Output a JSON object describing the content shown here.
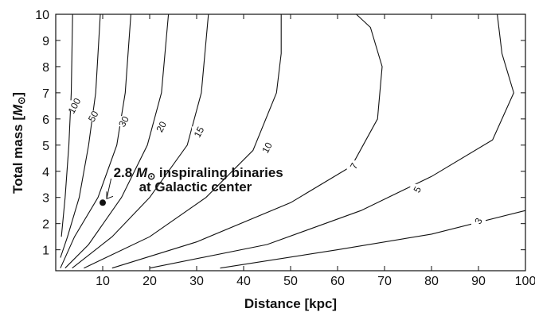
{
  "chart_data": {
    "type": "line",
    "title": "",
    "xlabel": "Distance [kpc]",
    "ylabel_parts": [
      "Total mass [",
      "M",
      "⊙",
      "]"
    ],
    "xlim": [
      0,
      100
    ],
    "ylim": [
      0.2,
      10
    ],
    "xticks": [
      10,
      20,
      30,
      40,
      50,
      60,
      70,
      80,
      90,
      100
    ],
    "yticks": [
      1,
      2,
      3,
      4,
      5,
      6,
      7,
      8,
      9,
      10
    ],
    "grid": false,
    "series": [
      {
        "name": "100",
        "points": [
          [
            1.2,
            1.5
          ],
          [
            2.0,
            3.0
          ],
          [
            2.8,
            5.0
          ],
          [
            3.3,
            7.0
          ],
          [
            3.6,
            10.0
          ]
        ],
        "label_at": [
          4.0,
          6.5
        ]
      },
      {
        "name": "50",
        "points": [
          [
            1.0,
            0.7
          ],
          [
            2.5,
            1.5
          ],
          [
            5.0,
            3.0
          ],
          [
            7.0,
            5.0
          ],
          [
            8.5,
            7.0
          ],
          [
            9.5,
            10.0
          ]
        ],
        "label_at": [
          8.0,
          6.1
        ]
      },
      {
        "name": "30",
        "points": [
          [
            1.0,
            0.3
          ],
          [
            4.0,
            1.5
          ],
          [
            9.0,
            3.0
          ],
          [
            13.0,
            5.0
          ],
          [
            14.8,
            7.0
          ],
          [
            16.0,
            10.0
          ]
        ],
        "label_at": [
          14.5,
          5.9
        ]
      },
      {
        "name": "20",
        "points": [
          [
            2.0,
            0.3
          ],
          [
            7.0,
            1.2
          ],
          [
            14.0,
            3.0
          ],
          [
            19.5,
            5.0
          ],
          [
            22.5,
            7.0
          ],
          [
            24.0,
            10.0
          ]
        ],
        "label_at": [
          22.5,
          5.7
        ]
      },
      {
        "name": "15",
        "points": [
          [
            3.5,
            0.3
          ],
          [
            12.0,
            1.5
          ],
          [
            20.0,
            3.0
          ],
          [
            28.0,
            5.0
          ],
          [
            31.0,
            7.0
          ],
          [
            32.5,
            10.0
          ]
        ],
        "label_at": [
          30.5,
          5.5
        ]
      },
      {
        "name": "10",
        "points": [
          [
            6.0,
            0.3
          ],
          [
            20.0,
            1.5
          ],
          [
            32.0,
            3.0
          ],
          [
            42.0,
            4.8
          ],
          [
            47.0,
            7.0
          ],
          [
            48.0,
            8.5
          ],
          [
            48.0,
            10.0
          ]
        ],
        "label_at": [
          45.0,
          4.9
        ]
      },
      {
        "name": "7",
        "points": [
          [
            12.0,
            0.3
          ],
          [
            30.0,
            1.3
          ],
          [
            50.0,
            2.8
          ],
          [
            63.0,
            4.2
          ],
          [
            68.5,
            6.0
          ],
          [
            69.5,
            8.0
          ],
          [
            67.0,
            9.5
          ],
          [
            64.0,
            10.0
          ]
        ],
        "label_at": [
          63.5,
          4.2
        ]
      },
      {
        "name": "5",
        "points": [
          [
            20.0,
            0.3
          ],
          [
            45.0,
            1.2
          ],
          [
            65.0,
            2.5
          ],
          [
            80.0,
            3.8
          ],
          [
            93.0,
            5.2
          ],
          [
            97.5,
            7.0
          ],
          [
            95.0,
            8.5
          ],
          [
            94.0,
            10.0
          ]
        ],
        "label_at": [
          77.0,
          3.3
        ]
      },
      {
        "name": "3",
        "points": [
          [
            35.0,
            0.3
          ],
          [
            60.0,
            1.0
          ],
          [
            80.0,
            1.6
          ],
          [
            100.0,
            2.5
          ]
        ],
        "label_at": [
          90.0,
          2.1
        ]
      }
    ],
    "markers": [
      {
        "x": 10.0,
        "y": 2.8
      }
    ],
    "annotation": {
      "line1_number": "2.8",
      "line1_unit_parts": [
        "M",
        "⊙"
      ],
      "line1_rest": " inspiraling binaries",
      "line2": "at Galactic center",
      "anchor": [
        10.0,
        2.8
      ],
      "text_at": [
        12.3,
        3.6
      ]
    }
  }
}
